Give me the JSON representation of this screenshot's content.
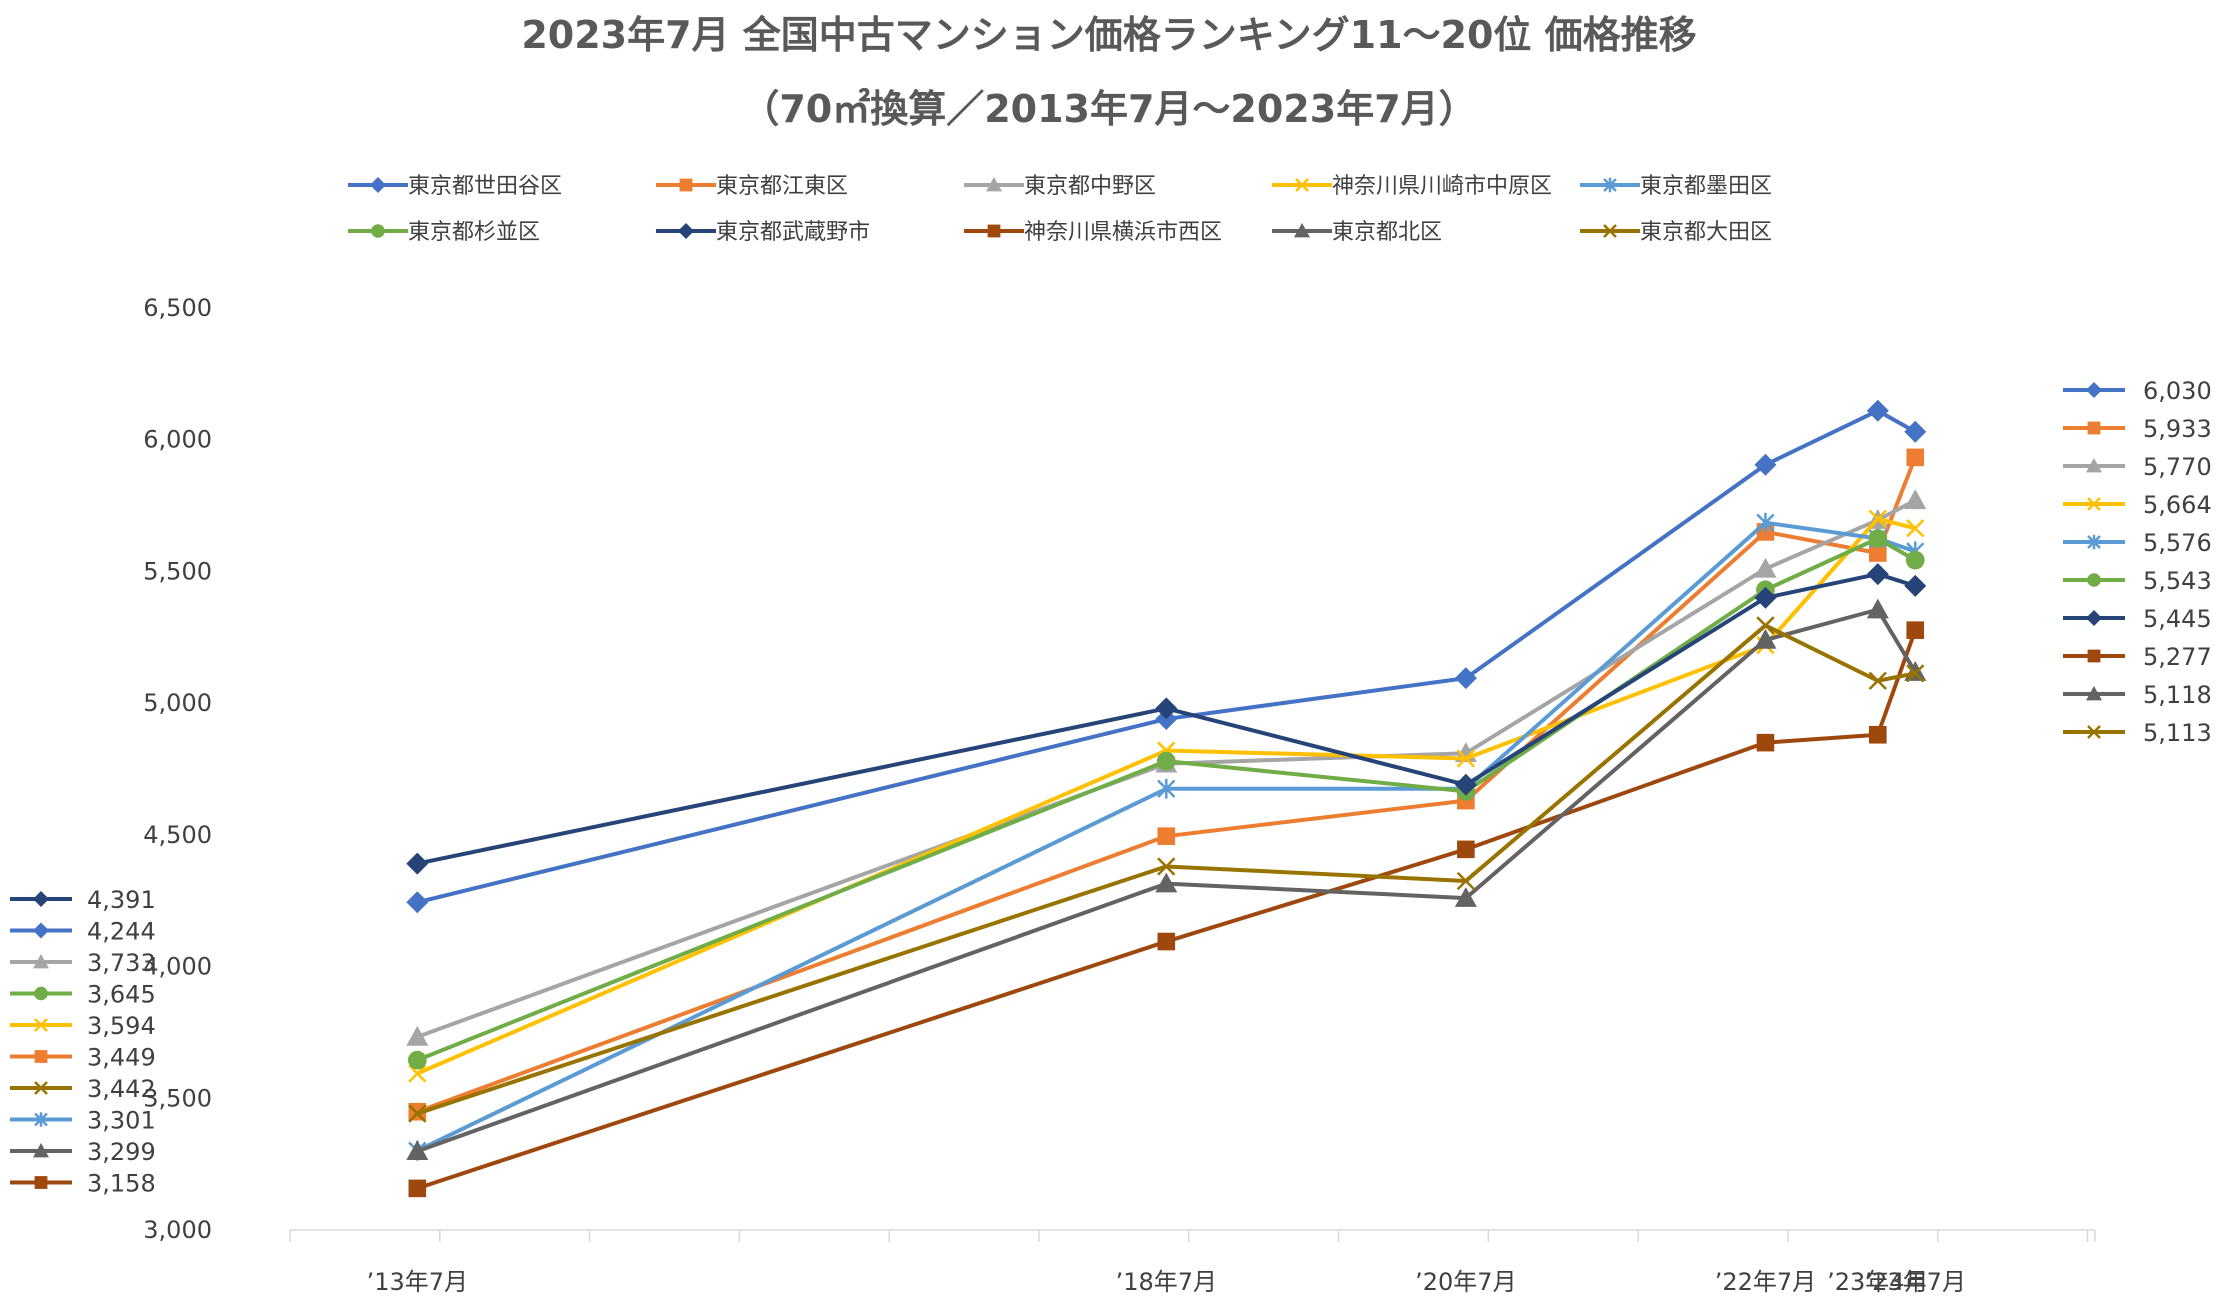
{
  "chart_data": {
    "type": "line",
    "title": "2023年7月 全国中古マンション価格ランキング11～20位 価格推移",
    "subtitle": "（70㎡換算／2013年7月～2023年7月）",
    "x": [
      "’13年7月",
      "’18年7月",
      "’20年7月",
      "’22年7月",
      "’23年4月",
      "’23年7月"
    ],
    "x_positions": [
      2013.5,
      2018.5,
      2020.5,
      2022.5,
      2023.25,
      2023.5
    ],
    "ylim": [
      3000,
      6500
    ],
    "yticks": [
      "3,000",
      "3,500",
      "4,000",
      "4,500",
      "5,000",
      "5,500",
      "6,000",
      "6,500"
    ],
    "ytick_values": [
      3000,
      3500,
      4000,
      4500,
      5000,
      5500,
      6000,
      6500
    ],
    "series": [
      {
        "name": "東京都世田谷区",
        "color": "#4472C4",
        "marker": "diamond",
        "values": [
          4244,
          4940,
          5095,
          5905,
          6110,
          6030
        ],
        "start_label": "4,244",
        "end_label": "6,030"
      },
      {
        "name": "東京都江東区",
        "color": "#ED7D31",
        "marker": "square",
        "values": [
          3449,
          4495,
          4630,
          5650,
          5570,
          5933
        ],
        "start_label": "3,449",
        "end_label": "5,933"
      },
      {
        "name": "東京都中野区",
        "color": "#A5A5A5",
        "marker": "triangle",
        "values": [
          3733,
          4770,
          4810,
          5510,
          5695,
          5770
        ],
        "start_label": "3,733",
        "end_label": "5,770"
      },
      {
        "name": "神奈川県川崎市中原区",
        "color": "#FFC000",
        "marker": "x",
        "values": [
          3594,
          4820,
          4790,
          5220,
          5700,
          5664
        ],
        "start_label": "3,594",
        "end_label": "5,664"
      },
      {
        "name": "東京都墨田区",
        "color": "#5B9BD5",
        "marker": "star",
        "values": [
          3301,
          4675,
          4675,
          5685,
          5625,
          5576
        ],
        "start_label": "3,301",
        "end_label": "5,576"
      },
      {
        "name": "東京都杉並区",
        "color": "#70AD47",
        "marker": "circle",
        "values": [
          3645,
          4780,
          4665,
          5430,
          5625,
          5543
        ],
        "start_label": "3,645",
        "end_label": "5,543"
      },
      {
        "name": "東京都武蔵野市",
        "color": "#264478",
        "marker": "diamond",
        "values": [
          4391,
          4980,
          4690,
          5400,
          5490,
          5445
        ],
        "start_label": "4,391",
        "end_label": "5,445"
      },
      {
        "name": "神奈川県横浜市西区",
        "color": "#9E480E",
        "marker": "square",
        "values": [
          3158,
          4095,
          4445,
          4850,
          4880,
          5277
        ],
        "start_label": "3,158",
        "end_label": "5,277"
      },
      {
        "name": "東京都北区",
        "color": "#636363",
        "marker": "triangle",
        "values": [
          3299,
          4315,
          4260,
          5240,
          5355,
          5118
        ],
        "start_label": "3,299",
        "end_label": "5,118"
      },
      {
        "name": "東京都大田区",
        "color": "#997300",
        "marker": "x",
        "values": [
          3442,
          4380,
          4325,
          5295,
          5085,
          5113
        ],
        "start_label": "3,442",
        "end_label": "5,113"
      }
    ],
    "left_label_order": [
      6,
      0,
      2,
      5,
      3,
      1,
      9,
      4,
      8,
      7
    ],
    "right_label_order": [
      0,
      1,
      2,
      3,
      4,
      5,
      6,
      7,
      8,
      9
    ]
  }
}
